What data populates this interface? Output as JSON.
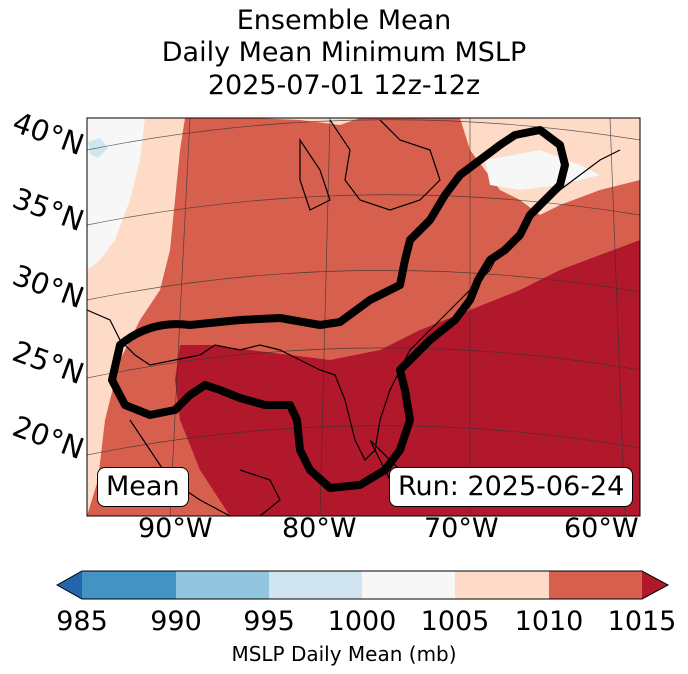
{
  "title": {
    "line1": "Ensemble Mean",
    "line2": "Daily Mean Minimum MSLP",
    "line3": "2025-07-01 12z-12z"
  },
  "map": {
    "lat_labels": [
      "40°N",
      "35°N",
      "30°N",
      "25°N",
      "20°N"
    ],
    "lon_labels": [
      "90°W",
      "80°W",
      "70°W",
      "60°W"
    ],
    "box_left": "Mean",
    "box_right": "Run: 2025-06-24"
  },
  "colorbar": {
    "ticks": [
      "985",
      "990",
      "995",
      "1000",
      "1005",
      "1010",
      "1015"
    ],
    "label": "MSLP Daily Mean (mb)",
    "colors": [
      "#2166ac",
      "#4393c3",
      "#92c5de",
      "#d1e5f0",
      "#f7f7f7",
      "#fddbc7",
      "#d6604d",
      "#b2182b"
    ]
  },
  "chart_data": {
    "type": "heatmap",
    "title": "Ensemble Mean Daily Mean Minimum MSLP 2025-07-01 12z-12z",
    "variable": "MSLP Daily Mean (mb)",
    "levels": [
      985,
      990,
      995,
      1000,
      1005,
      1010,
      1015
    ],
    "extend": "both",
    "lon_range": [
      -97,
      -58
    ],
    "lat_range": [
      16,
      42
    ]
  }
}
